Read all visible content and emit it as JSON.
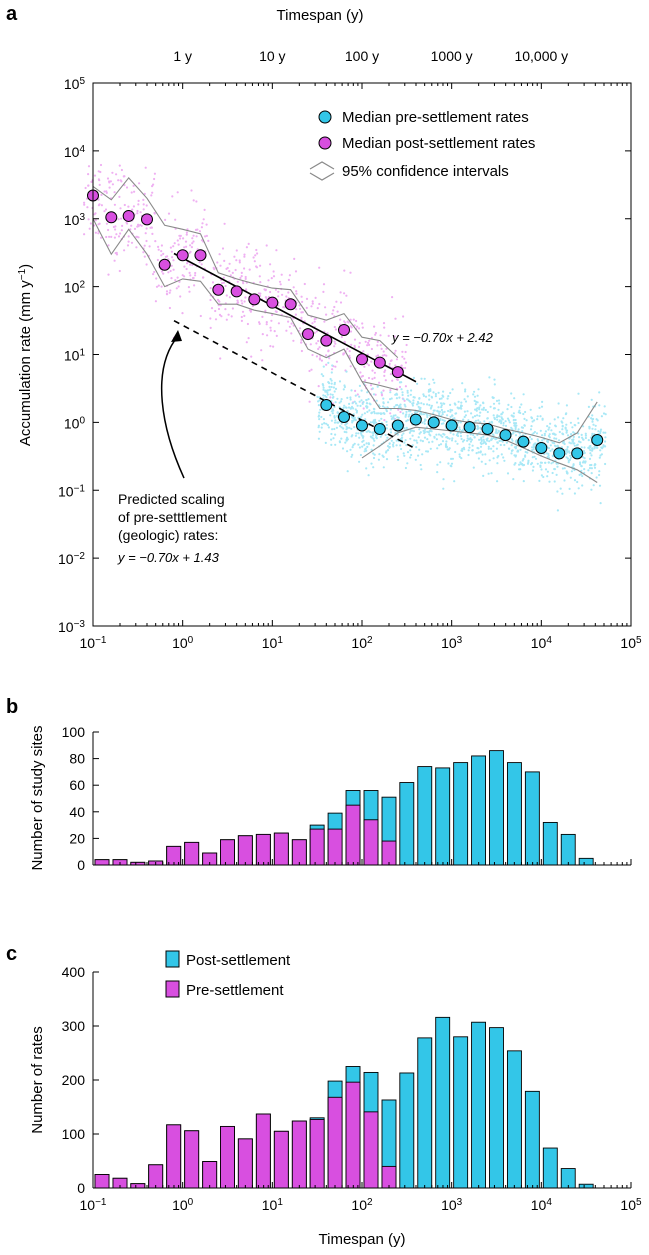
{
  "panels": {
    "a": "a",
    "b": "b",
    "c": "c"
  },
  "colors": {
    "pre": "#33c6e8",
    "post": "#d84fe0",
    "pre_light": "#a8e8f6",
    "post_light": "#efb0f2",
    "ci": "#8a8a8a"
  },
  "chart_data": [
    {
      "id": "a",
      "type": "scatter",
      "title": "",
      "top_axis_label": "Timespan (y)",
      "top_tick_labels": [
        "1 y",
        "10 y",
        "100 y",
        "1000 y",
        "10,000 y"
      ],
      "top_tick_values": [
        1,
        10,
        100,
        1000,
        10000
      ],
      "ylabel_main": "Accumulation rate (mm y",
      "ylabel_sup": "−1",
      "ylabel_end": ")",
      "x_scale": "log",
      "y_scale": "log",
      "xlim": [
        0.1,
        100000
      ],
      "ylim": [
        0.001,
        100000
      ],
      "x_ticks": [
        {
          "v": 0.1,
          "base": "10",
          "exp": "−1"
        },
        {
          "v": 1,
          "base": "10",
          "exp": "0"
        },
        {
          "v": 10,
          "base": "10",
          "exp": "1"
        },
        {
          "v": 100,
          "base": "10",
          "exp": "2"
        },
        {
          "v": 1000,
          "base": "10",
          "exp": "3"
        },
        {
          "v": 10000,
          "base": "10",
          "exp": "4"
        },
        {
          "v": 100000,
          "base": "10",
          "exp": "5"
        }
      ],
      "y_ticks": [
        {
          "v": 0.001,
          "base": "10",
          "exp": "−3"
        },
        {
          "v": 0.01,
          "base": "10",
          "exp": "−2"
        },
        {
          "v": 0.1,
          "base": "10",
          "exp": "−1"
        },
        {
          "v": 1,
          "base": "10",
          "exp": "0"
        },
        {
          "v": 10,
          "base": "10",
          "exp": "1"
        },
        {
          "v": 100,
          "base": "10",
          "exp": "2"
        },
        {
          "v": 1000,
          "base": "10",
          "exp": "3"
        },
        {
          "v": 10000,
          "base": "10",
          "exp": "4"
        },
        {
          "v": 100000,
          "base": "10",
          "exp": "5"
        }
      ],
      "legend": {
        "pre_label": "Median pre-settlement rates",
        "post_label": "Median post-settlement rates",
        "ci_label": "95% confidence intervals",
        "placement": "top-right"
      },
      "post_medians": [
        {
          "x": 0.1,
          "y": 2200
        },
        {
          "x": 0.16,
          "y": 1050
        },
        {
          "x": 0.25,
          "y": 1100
        },
        {
          "x": 0.4,
          "y": 980
        },
        {
          "x": 0.63,
          "y": 210
        },
        {
          "x": 1.0,
          "y": 290
        },
        {
          "x": 1.58,
          "y": 290
        },
        {
          "x": 2.5,
          "y": 90
        },
        {
          "x": 4.0,
          "y": 85
        },
        {
          "x": 6.3,
          "y": 65
        },
        {
          "x": 10,
          "y": 58
        },
        {
          "x": 16,
          "y": 55
        },
        {
          "x": 25,
          "y": 20
        },
        {
          "x": 40,
          "y": 16
        },
        {
          "x": 63,
          "y": 23
        },
        {
          "x": 100,
          "y": 8.5
        },
        {
          "x": 158,
          "y": 7.6
        },
        {
          "x": 251,
          "y": 5.5
        }
      ],
      "pre_medians": [
        {
          "x": 40,
          "y": 1.8
        },
        {
          "x": 63,
          "y": 1.2
        },
        {
          "x": 100,
          "y": 0.9
        },
        {
          "x": 158,
          "y": 0.8
        },
        {
          "x": 251,
          "y": 0.9
        },
        {
          "x": 398,
          "y": 1.1
        },
        {
          "x": 631,
          "y": 1.0
        },
        {
          "x": 1000,
          "y": 0.9
        },
        {
          "x": 1585,
          "y": 0.85
        },
        {
          "x": 2512,
          "y": 0.8
        },
        {
          "x": 3981,
          "y": 0.65
        },
        {
          "x": 6310,
          "y": 0.52
        },
        {
          "x": 10000,
          "y": 0.42
        },
        {
          "x": 15849,
          "y": 0.35
        },
        {
          "x": 25119,
          "y": 0.35
        },
        {
          "x": 42000,
          "y": 0.55
        }
      ],
      "post_fit": {
        "equation_text": "y = −0.70x + 2.42",
        "slope": -0.7,
        "intercept": 2.42,
        "x_range": [
          0.8,
          400
        ]
      },
      "pre_fit": {
        "slope": -0.7,
        "intercept": 1.43,
        "x_range": [
          0.8,
          400
        ]
      },
      "annotation": {
        "lines": [
          "Predicted scaling",
          "of pre-setttlement",
          "(geologic) rates:"
        ],
        "equation_text": "y = −0.70x + 1.43"
      },
      "post_ci": {
        "upper": [
          [
            0.1,
            3000
          ],
          [
            0.16,
            1900
          ],
          [
            0.25,
            4000
          ],
          [
            0.4,
            2000
          ],
          [
            0.63,
            800
          ],
          [
            1.0,
            700
          ],
          [
            1.58,
            600
          ],
          [
            2.5,
            160
          ],
          [
            4.0,
            130
          ],
          [
            6.3,
            110
          ],
          [
            10,
            95
          ],
          [
            16,
            90
          ],
          [
            25,
            38
          ],
          [
            40,
            32
          ],
          [
            63,
            40
          ],
          [
            100,
            18
          ],
          [
            158,
            16
          ],
          [
            251,
            9
          ]
        ],
        "lower": [
          [
            0.1,
            1000
          ],
          [
            0.16,
            300
          ],
          [
            0.25,
            700
          ],
          [
            0.4,
            300
          ],
          [
            0.63,
            100
          ],
          [
            1.0,
            130
          ],
          [
            1.58,
            120
          ],
          [
            2.5,
            55
          ],
          [
            4.0,
            55
          ],
          [
            6.3,
            45
          ],
          [
            10,
            40
          ],
          [
            16,
            35
          ],
          [
            25,
            12
          ],
          [
            40,
            9
          ],
          [
            63,
            12
          ],
          [
            100,
            4
          ],
          [
            158,
            3.5
          ],
          [
            251,
            3
          ]
        ]
      },
      "pre_ci": {
        "upper": [
          [
            100,
            4
          ],
          [
            158,
            1.6
          ],
          [
            251,
            1.6
          ],
          [
            398,
            1.5
          ],
          [
            631,
            1.3
          ],
          [
            1000,
            1.1
          ],
          [
            1585,
            1.0
          ],
          [
            2512,
            0.95
          ],
          [
            3981,
            0.8
          ],
          [
            6310,
            0.7
          ],
          [
            10000,
            0.6
          ],
          [
            15849,
            0.5
          ],
          [
            25119,
            0.7
          ],
          [
            42000,
            2.0
          ]
        ],
        "lower": [
          [
            100,
            0.3
          ],
          [
            158,
            0.45
          ],
          [
            251,
            0.7
          ],
          [
            398,
            0.85
          ],
          [
            631,
            0.8
          ],
          [
            1000,
            0.75
          ],
          [
            1585,
            0.7
          ],
          [
            2512,
            0.65
          ],
          [
            3981,
            0.55
          ],
          [
            6310,
            0.42
          ],
          [
            10000,
            0.32
          ],
          [
            15849,
            0.25
          ],
          [
            25119,
            0.2
          ],
          [
            42000,
            0.13
          ]
        ]
      }
    },
    {
      "id": "b",
      "type": "bar",
      "ylabel": "Number of study sites",
      "x_scale": "log",
      "xlim": [
        0.1,
        100000
      ],
      "ylim": [
        0,
        100
      ],
      "y_ticks": [
        0,
        20,
        40,
        60,
        80,
        100
      ],
      "bin_centers": [
        0.126,
        0.2,
        0.316,
        0.5,
        0.794,
        1.26,
        2.0,
        3.16,
        5.0,
        7.94,
        12.6,
        20.0,
        31.6,
        50.1,
        79.4,
        126,
        200,
        316,
        501,
        794,
        1259,
        1995,
        3162,
        5012,
        7943,
        12589,
        19953,
        31623
      ],
      "series": [
        {
          "name": "Pre-settlement",
          "color_key": "post",
          "values": [
            4,
            4,
            2,
            3,
            14,
            17,
            9,
            19,
            22,
            23,
            24,
            19,
            27,
            27,
            45,
            34,
            18,
            0,
            0,
            0,
            0,
            0,
            0,
            0,
            0,
            0,
            0,
            0
          ]
        },
        {
          "name": "Post-settlement",
          "color_key": "pre",
          "values": [
            4,
            4,
            2,
            3,
            14,
            17,
            9,
            19,
            22,
            23,
            24,
            19,
            30,
            39,
            56,
            56,
            51,
            62,
            74,
            73,
            77,
            82,
            86,
            77,
            70,
            32,
            23,
            5
          ]
        }
      ]
    },
    {
      "id": "c",
      "type": "bar",
      "ylabel": "Number of rates",
      "xlabel": "Timespan (y)",
      "x_scale": "log",
      "xlim": [
        0.1,
        100000
      ],
      "ylim": [
        0,
        400
      ],
      "y_ticks": [
        0,
        100,
        200,
        300,
        400
      ],
      "legend": {
        "post_label": "Post-settlement",
        "pre_label": "Pre-settlement",
        "placement": "top-left"
      },
      "bin_centers": [
        0.126,
        0.2,
        0.316,
        0.5,
        0.794,
        1.26,
        2.0,
        3.16,
        5.0,
        7.94,
        12.6,
        20.0,
        31.6,
        50.1,
        79.4,
        126,
        200,
        316,
        501,
        794,
        1259,
        1995,
        3162,
        5012,
        7943,
        12589,
        19953,
        31623
      ],
      "series": [
        {
          "name": "Pre-settlement",
          "color_key": "post",
          "values": [
            25,
            18,
            8,
            43,
            117,
            106,
            49,
            114,
            91,
            137,
            105,
            124,
            127,
            168,
            196,
            141,
            40,
            0,
            0,
            0,
            0,
            0,
            0,
            0,
            0,
            0,
            0,
            0
          ]
        },
        {
          "name": "Post-settlement",
          "color_key": "pre",
          "values": [
            25,
            18,
            8,
            43,
            117,
            106,
            49,
            114,
            91,
            137,
            105,
            124,
            130,
            198,
            225,
            214,
            163,
            213,
            278,
            316,
            280,
            307,
            297,
            254,
            179,
            74,
            36,
            7
          ]
        }
      ]
    }
  ]
}
